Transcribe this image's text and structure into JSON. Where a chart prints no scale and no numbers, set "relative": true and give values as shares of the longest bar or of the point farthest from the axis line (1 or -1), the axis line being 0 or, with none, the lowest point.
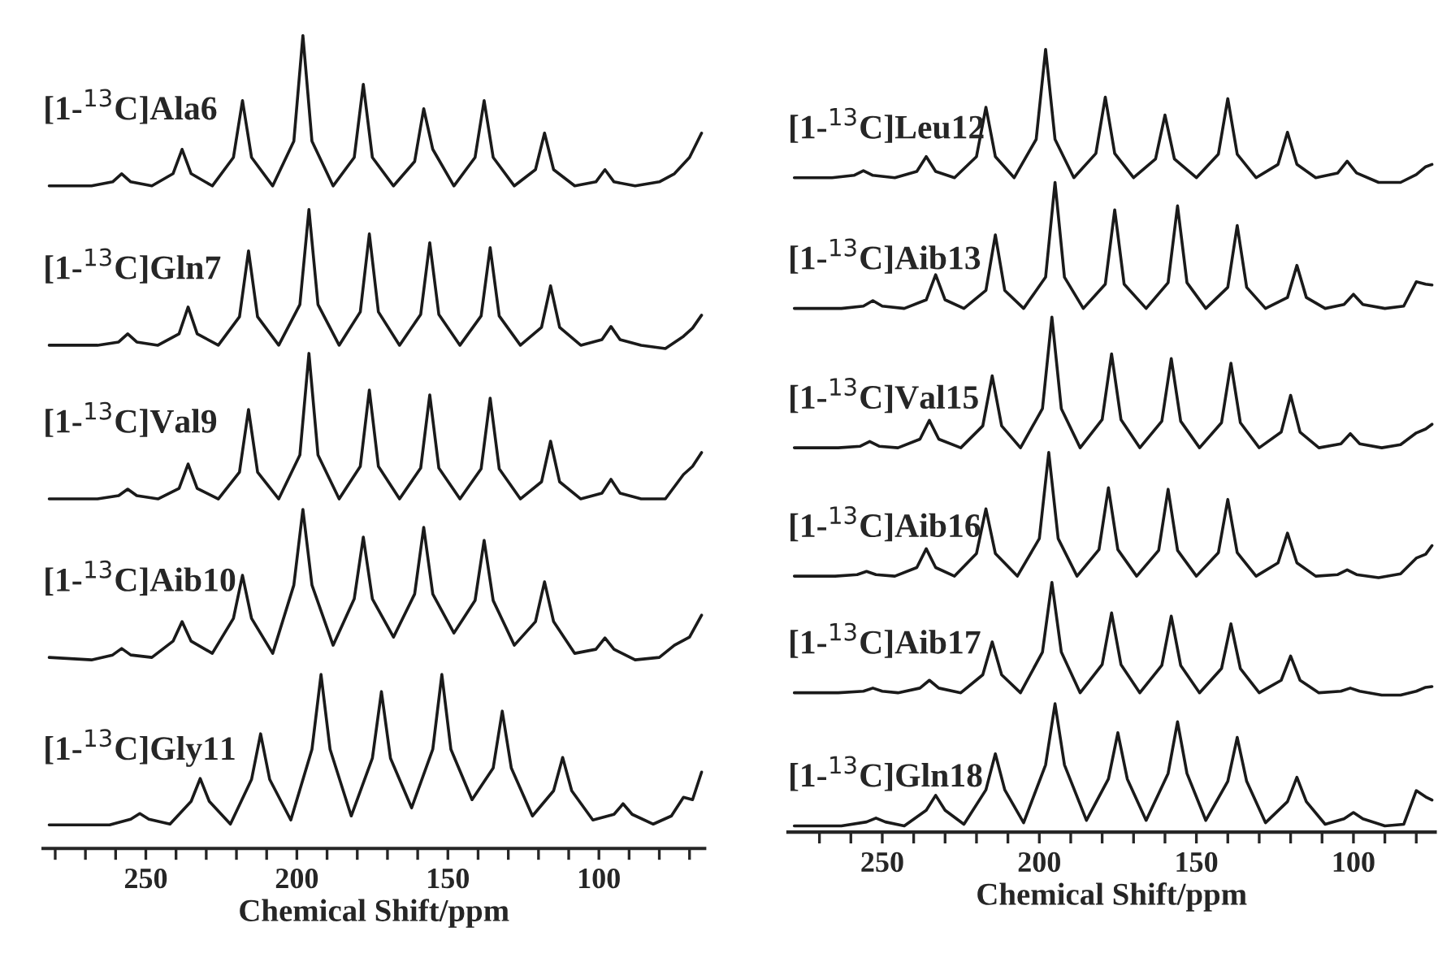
{
  "chart_data": [
    {
      "type": "line",
      "relative": true,
      "xlabel": "Chemical Shift/ppm",
      "xlim": [
        284,
        65
      ],
      "grid": false,
      "legend": false,
      "marker": "none",
      "line_style": "solid",
      "xticks": [
        {
          "value": 280,
          "label": null
        },
        {
          "value": 270,
          "label": null
        },
        {
          "value": 260,
          "label": null
        },
        250,
        {
          "value": 240,
          "label": null
        },
        {
          "value": 230,
          "label": null
        },
        {
          "value": 220,
          "label": null
        },
        {
          "value": 210,
          "label": null
        },
        200,
        {
          "value": 190,
          "label": null
        },
        {
          "value": 180,
          "label": null
        },
        {
          "value": 170,
          "label": null
        },
        {
          "value": 160,
          "label": null
        },
        150,
        {
          "value": 140,
          "label": null
        },
        {
          "value": 130,
          "label": null
        },
        {
          "value": 120,
          "label": null
        },
        {
          "value": 110,
          "label": null
        },
        100,
        {
          "value": 90,
          "label": null
        },
        {
          "value": 80,
          "label": null
        },
        {
          "value": 70,
          "label": null
        }
      ],
      "series": [
        {
          "name": "[1-$^{13}$C]Ala6",
          "color": "#1a1a1a",
          "x": [
            282,
            268,
            261,
            258,
            255,
            248,
            241,
            238,
            235,
            228,
            221,
            218,
            215,
            208,
            201,
            198,
            195,
            188,
            181,
            178,
            175,
            168,
            161,
            158,
            155,
            148,
            141,
            138,
            135,
            128,
            121,
            118,
            115,
            108,
            101,
            98,
            95,
            88,
            80,
            75,
            70,
            66
          ],
          "values": [
            0.815,
            0.815,
            0.82,
            0.83,
            0.82,
            0.815,
            0.83,
            0.86,
            0.83,
            0.815,
            0.85,
            0.92,
            0.85,
            0.815,
            0.87,
            1.0,
            0.87,
            0.815,
            0.85,
            0.94,
            0.85,
            0.815,
            0.845,
            0.91,
            0.86,
            0.815,
            0.85,
            0.92,
            0.85,
            0.815,
            0.835,
            0.88,
            0.835,
            0.815,
            0.82,
            0.835,
            0.82,
            0.815,
            0.82,
            0.83,
            0.85,
            0.88
          ]
        },
        {
          "name": "[1-$^{13}$C]Gln7",
          "color": "#1a1a1a",
          "x": [
            282,
            266,
            259,
            256,
            253,
            246,
            239,
            236,
            233,
            226,
            219,
            216,
            213,
            206,
            199,
            196,
            193,
            186,
            179,
            176,
            173,
            166,
            159,
            156,
            153,
            146,
            139,
            136,
            133,
            126,
            119,
            116,
            113,
            106,
            99,
            96,
            93,
            86,
            78,
            72,
            69,
            66
          ],
          "values": [
            0.619,
            0.619,
            0.623,
            0.633,
            0.623,
            0.619,
            0.633,
            0.666,
            0.633,
            0.619,
            0.654,
            0.735,
            0.654,
            0.619,
            0.669,
            0.786,
            0.669,
            0.619,
            0.66,
            0.756,
            0.66,
            0.619,
            0.657,
            0.745,
            0.657,
            0.619,
            0.655,
            0.739,
            0.655,
            0.619,
            0.641,
            0.692,
            0.641,
            0.619,
            0.626,
            0.642,
            0.626,
            0.619,
            0.615,
            0.63,
            0.64,
            0.656
          ]
        },
        {
          "name": "[1-$^{13}$C]Val9",
          "color": "#1a1a1a",
          "x": [
            282,
            266,
            259,
            256,
            253,
            246,
            239,
            236,
            233,
            226,
            219,
            216,
            213,
            206,
            199,
            196,
            193,
            186,
            179,
            176,
            173,
            166,
            159,
            156,
            153,
            146,
            139,
            136,
            133,
            126,
            119,
            116,
            113,
            106,
            99,
            96,
            93,
            86,
            78,
            72,
            69,
            66
          ],
          "values": [
            0.43,
            0.43,
            0.434,
            0.442,
            0.434,
            0.43,
            0.443,
            0.473,
            0.443,
            0.43,
            0.463,
            0.54,
            0.463,
            0.43,
            0.484,
            0.609,
            0.484,
            0.43,
            0.47,
            0.564,
            0.47,
            0.43,
            0.468,
            0.558,
            0.468,
            0.43,
            0.467,
            0.554,
            0.467,
            0.43,
            0.451,
            0.501,
            0.451,
            0.43,
            0.437,
            0.454,
            0.437,
            0.43,
            0.43,
            0.46,
            0.47,
            0.487
          ]
        },
        {
          "name": "[1-$^{13}$C]Aib10",
          "color": "#1a1a1a",
          "x": [
            282,
            268,
            261,
            258,
            255,
            248,
            241,
            238,
            235,
            228,
            221,
            218,
            215,
            208,
            201,
            198,
            195,
            188,
            181,
            178,
            175,
            168,
            161,
            158,
            155,
            148,
            141,
            138,
            135,
            128,
            121,
            118,
            115,
            108,
            101,
            98,
            95,
            88,
            80,
            75,
            70,
            66
          ],
          "values": [
            0.235,
            0.232,
            0.238,
            0.246,
            0.238,
            0.235,
            0.255,
            0.279,
            0.255,
            0.24,
            0.283,
            0.336,
            0.283,
            0.24,
            0.324,
            0.417,
            0.324,
            0.25,
            0.307,
            0.383,
            0.307,
            0.26,
            0.313,
            0.395,
            0.313,
            0.265,
            0.305,
            0.379,
            0.305,
            0.25,
            0.279,
            0.328,
            0.279,
            0.24,
            0.245,
            0.259,
            0.245,
            0.232,
            0.235,
            0.25,
            0.26,
            0.287
          ]
        },
        {
          "name": "[1-$^{13}$C]Gly11",
          "color": "#1a1a1a",
          "x": [
            282,
            262,
            255,
            252,
            249,
            242,
            235,
            232,
            229,
            222,
            215,
            212,
            209,
            202,
            195,
            192,
            189,
            182,
            175,
            172,
            169,
            162,
            155,
            152,
            149,
            142,
            135,
            132,
            129,
            122,
            115,
            112,
            109,
            102,
            95,
            92,
            89,
            82,
            76,
            72,
            69,
            66
          ],
          "values": [
            0.029,
            0.029,
            0.036,
            0.043,
            0.036,
            0.03,
            0.058,
            0.086,
            0.058,
            0.03,
            0.085,
            0.141,
            0.085,
            0.035,
            0.122,
            0.214,
            0.122,
            0.04,
            0.111,
            0.193,
            0.111,
            0.05,
            0.122,
            0.214,
            0.122,
            0.06,
            0.099,
            0.169,
            0.099,
            0.04,
            0.071,
            0.112,
            0.071,
            0.035,
            0.042,
            0.055,
            0.042,
            0.03,
            0.04,
            0.063,
            0.06,
            0.094
          ]
        }
      ]
    },
    {
      "type": "line",
      "relative": true,
      "xlabel": "Chemical Shift/ppm",
      "xlim": [
        280,
        74
      ],
      "grid": false,
      "legend": false,
      "marker": "none",
      "line_style": "solid",
      "xticks": [
        {
          "value": 270,
          "label": null
        },
        {
          "value": 260,
          "label": null
        },
        250,
        {
          "value": 240,
          "label": null
        },
        {
          "value": 230,
          "label": null
        },
        {
          "value": 220,
          "label": null
        },
        {
          "value": 210,
          "label": null
        },
        200,
        {
          "value": 190,
          "label": null
        },
        {
          "value": 180,
          "label": null
        },
        {
          "value": 170,
          "label": null
        },
        {
          "value": 160,
          "label": null
        },
        150,
        {
          "value": 140,
          "label": null
        },
        {
          "value": 130,
          "label": null
        },
        {
          "value": 120,
          "label": null
        },
        {
          "value": 110,
          "label": null
        },
        100,
        {
          "value": 90,
          "label": null
        },
        {
          "value": 80,
          "label": null
        }
      ],
      "series": [
        {
          "name": "[1-$^{13}$C]Leu12",
          "color": "#1a1a1a",
          "x": [
            278,
            266,
            259,
            256,
            253,
            246,
            239,
            236,
            233,
            227,
            220,
            217,
            214,
            208,
            201,
            198,
            195,
            189,
            182,
            179,
            176,
            170,
            163,
            160,
            157,
            150,
            143,
            140,
            137,
            131,
            124,
            121,
            118,
            112,
            105,
            102,
            99,
            92,
            85,
            80,
            77,
            75
          ],
          "values": [
            0.836,
            0.836,
            0.839,
            0.845,
            0.839,
            0.836,
            0.844,
            0.863,
            0.844,
            0.836,
            0.863,
            0.926,
            0.863,
            0.836,
            0.885,
            1.0,
            0.885,
            0.836,
            0.867,
            0.939,
            0.867,
            0.836,
            0.86,
            0.916,
            0.86,
            0.836,
            0.866,
            0.937,
            0.866,
            0.836,
            0.853,
            0.894,
            0.853,
            0.836,
            0.842,
            0.857,
            0.842,
            0.83,
            0.83,
            0.84,
            0.85,
            0.853
          ]
        },
        {
          "name": "[1-$^{13}$C]Aib13",
          "color": "#1a1a1a",
          "x": [
            278,
            263,
            256,
            253,
            250,
            243,
            236,
            233,
            230,
            224,
            217,
            214,
            211,
            205,
            198,
            195,
            192,
            186,
            179,
            176,
            173,
            166,
            159,
            156,
            153,
            147,
            140,
            137,
            134,
            128,
            121,
            118,
            115,
            109,
            103,
            100,
            97,
            90,
            84,
            80,
            77,
            75
          ],
          "values": [
            0.669,
            0.669,
            0.672,
            0.679,
            0.672,
            0.669,
            0.68,
            0.712,
            0.68,
            0.669,
            0.692,
            0.763,
            0.692,
            0.669,
            0.709,
            0.83,
            0.709,
            0.669,
            0.7,
            0.795,
            0.7,
            0.669,
            0.702,
            0.8,
            0.702,
            0.669,
            0.696,
            0.775,
            0.696,
            0.669,
            0.683,
            0.724,
            0.683,
            0.669,
            0.674,
            0.687,
            0.674,
            0.669,
            0.672,
            0.703,
            0.7,
            0.699
          ]
        },
        {
          "name": "[1-$^{13}$C]Val15",
          "color": "#1a1a1a",
          "x": [
            278,
            264,
            257,
            254,
            251,
            245,
            238,
            235,
            232,
            225,
            218,
            215,
            212,
            206,
            199,
            196,
            193,
            187,
            180,
            177,
            174,
            168,
            161,
            158,
            155,
            149,
            142,
            139,
            136,
            130,
            123,
            120,
            117,
            111,
            104,
            101,
            98,
            91,
            85,
            80,
            77,
            75
          ],
          "values": [
            0.491,
            0.491,
            0.493,
            0.499,
            0.493,
            0.491,
            0.502,
            0.526,
            0.502,
            0.491,
            0.519,
            0.583,
            0.519,
            0.491,
            0.541,
            0.658,
            0.541,
            0.491,
            0.527,
            0.611,
            0.527,
            0.491,
            0.525,
            0.605,
            0.525,
            0.491,
            0.523,
            0.599,
            0.523,
            0.491,
            0.511,
            0.558,
            0.511,
            0.491,
            0.496,
            0.509,
            0.496,
            0.491,
            0.495,
            0.51,
            0.515,
            0.521
          ]
        },
        {
          "name": "[1-$^{13}$C]Aib16",
          "color": "#1a1a1a",
          "x": [
            278,
            265,
            258,
            255,
            252,
            246,
            239,
            236,
            233,
            227,
            220,
            217,
            214,
            207,
            200,
            197,
            194,
            188,
            181,
            178,
            175,
            169,
            162,
            159,
            156,
            150,
            143,
            140,
            137,
            131,
            124,
            121,
            118,
            112,
            105,
            102,
            99,
            92,
            85,
            80,
            77,
            75
          ],
          "values": [
            0.327,
            0.327,
            0.329,
            0.333,
            0.329,
            0.327,
            0.338,
            0.362,
            0.338,
            0.327,
            0.356,
            0.413,
            0.356,
            0.327,
            0.375,
            0.485,
            0.375,
            0.327,
            0.361,
            0.44,
            0.361,
            0.327,
            0.36,
            0.438,
            0.36,
            0.327,
            0.357,
            0.425,
            0.357,
            0.327,
            0.344,
            0.382,
            0.344,
            0.327,
            0.329,
            0.335,
            0.329,
            0.325,
            0.33,
            0.35,
            0.355,
            0.366
          ]
        },
        {
          "name": "[1-$^{13}$C]Aib17",
          "color": "#1a1a1a",
          "x": [
            278,
            264,
            256,
            253,
            250,
            245,
            238,
            235,
            232,
            225,
            218,
            215,
            212,
            206,
            199,
            196,
            193,
            187,
            180,
            177,
            174,
            168,
            161,
            158,
            155,
            149,
            142,
            139,
            136,
            130,
            123,
            120,
            117,
            111,
            104,
            101,
            98,
            91,
            85,
            80,
            77,
            75
          ],
          "values": [
            0.178,
            0.178,
            0.18,
            0.184,
            0.18,
            0.178,
            0.184,
            0.194,
            0.184,
            0.178,
            0.201,
            0.243,
            0.201,
            0.178,
            0.23,
            0.319,
            0.23,
            0.178,
            0.214,
            0.28,
            0.214,
            0.178,
            0.213,
            0.276,
            0.213,
            0.178,
            0.209,
            0.266,
            0.209,
            0.178,
            0.194,
            0.225,
            0.194,
            0.178,
            0.18,
            0.184,
            0.18,
            0.175,
            0.175,
            0.18,
            0.185,
            0.186
          ]
        },
        {
          "name": "[1-$^{13}$C]Gln18",
          "color": "#1a1a1a",
          "x": [
            278,
            263,
            255,
            252,
            249,
            243,
            236,
            233,
            230,
            224,
            217,
            214,
            211,
            205,
            198,
            195,
            192,
            185,
            178,
            175,
            172,
            166,
            159,
            156,
            153,
            147,
            140,
            137,
            134,
            128,
            121,
            118,
            115,
            109,
            103,
            100,
            97,
            90,
            84,
            80,
            77,
            75
          ],
          "values": [
            0.008,
            0.008,
            0.013,
            0.018,
            0.013,
            0.008,
            0.028,
            0.047,
            0.028,
            0.01,
            0.054,
            0.1,
            0.054,
            0.012,
            0.086,
            0.164,
            0.086,
            0.015,
            0.068,
            0.127,
            0.068,
            0.015,
            0.075,
            0.141,
            0.075,
            0.015,
            0.065,
            0.121,
            0.065,
            0.012,
            0.039,
            0.07,
            0.039,
            0.01,
            0.017,
            0.025,
            0.017,
            0.008,
            0.01,
            0.053,
            0.045,
            0.041
          ]
        }
      ]
    }
  ]
}
